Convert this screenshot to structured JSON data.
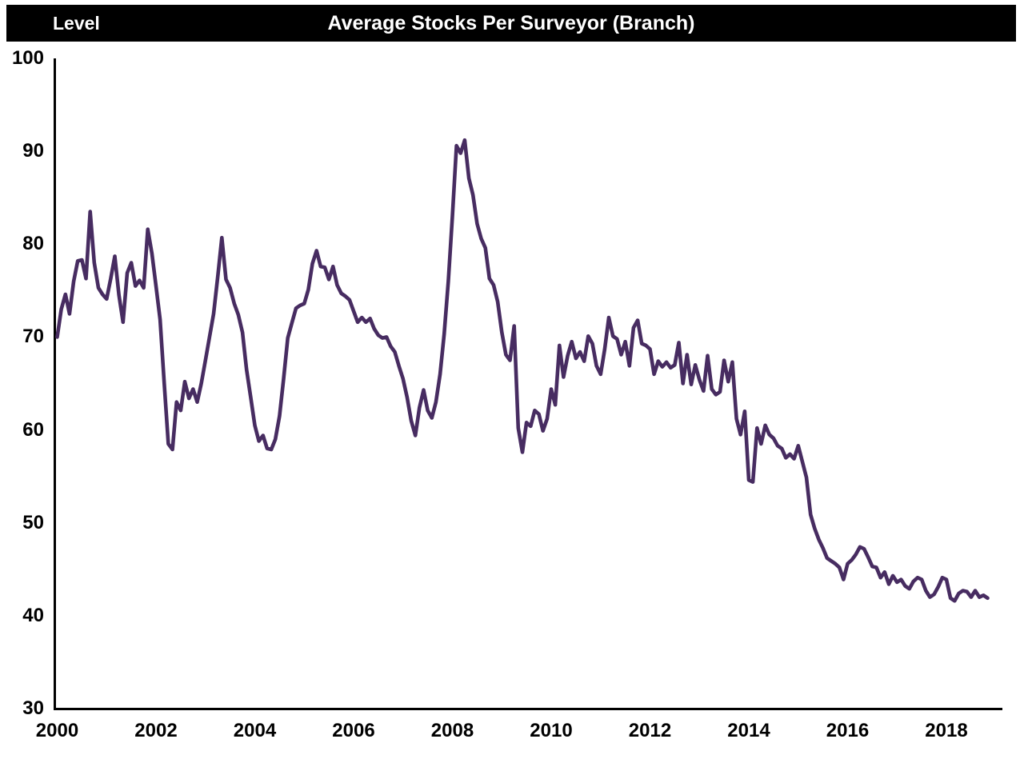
{
  "header": {
    "level_label": "Level",
    "title": "Average Stocks Per Surveyor (Branch)",
    "bar_color": "#000000",
    "text_color": "#ffffff"
  },
  "chart_data": {
    "type": "line",
    "title": "Average Stocks Per Surveyor (Branch)",
    "ylabel": "Level",
    "xlabel": "",
    "grid": false,
    "legend": "none",
    "y_axis": {
      "min": 30,
      "max": 100,
      "tick_interval": 10,
      "ticks": [
        100,
        90,
        80,
        70,
        60,
        50,
        40,
        30
      ]
    },
    "x_axis": {
      "tick_years": [
        2000,
        2002,
        2004,
        2006,
        2008,
        2010,
        2012,
        2014,
        2016,
        2018
      ],
      "range_start": 2000.0,
      "range_end": 2018.92
    },
    "axis_color": "#000000",
    "series": [
      {
        "name": "Average stocks per surveyor (branch)",
        "color": "#472c61",
        "frequency": "monthly",
        "start_year": 2000,
        "start_month": 1,
        "values": [
          70.0,
          73.0,
          74.6,
          72.5,
          76.0,
          78.2,
          78.3,
          76.3,
          83.5,
          78.0,
          75.3,
          74.6,
          74.1,
          76.3,
          78.7,
          74.5,
          71.6,
          76.9,
          78.0,
          75.5,
          76.1,
          75.3,
          81.6,
          79.0,
          75.5,
          71.9,
          65.0,
          58.5,
          57.9,
          63.0,
          62.1,
          65.2,
          63.4,
          64.4,
          63.0,
          65.0,
          67.5,
          70.0,
          72.5,
          76.5,
          80.7,
          76.2,
          75.3,
          73.6,
          72.4,
          70.5,
          66.5,
          63.5,
          60.5,
          58.8,
          59.4,
          58.0,
          57.9,
          59.0,
          61.5,
          65.5,
          69.9,
          71.5,
          73.1,
          73.4,
          73.6,
          75.1,
          77.9,
          79.3,
          77.6,
          77.5,
          76.2,
          77.6,
          75.6,
          74.7,
          74.4,
          74.0,
          72.8,
          71.6,
          72.1,
          71.6,
          72.0,
          70.9,
          70.2,
          69.9,
          70.0,
          69.0,
          68.4,
          66.9,
          65.5,
          63.5,
          61.0,
          59.4,
          62.4,
          64.3,
          62.1,
          61.3,
          63.0,
          66.0,
          70.3,
          76.0,
          83.0,
          90.6,
          89.8,
          91.2,
          87.1,
          85.3,
          82.2,
          80.6,
          79.6,
          76.3,
          75.6,
          73.8,
          70.5,
          68.1,
          67.5,
          71.2,
          60.2,
          57.6,
          60.8,
          60.4,
          62.1,
          61.7,
          59.9,
          61.2,
          64.4,
          62.7,
          69.1,
          65.7,
          68.0,
          69.5,
          67.7,
          68.4,
          67.4,
          70.1,
          69.3,
          66.9,
          66.0,
          68.7,
          72.1,
          70.1,
          69.8,
          68.1,
          69.5,
          66.9,
          71.0,
          71.8,
          69.3,
          69.1,
          68.7,
          66.0,
          67.4,
          66.8,
          67.3,
          66.7,
          67.0,
          69.4,
          65.0,
          68.1,
          64.9,
          67.0,
          65.4,
          64.2,
          68.0,
          64.4,
          63.8,
          64.1,
          67.5,
          65.2,
          67.3,
          61.2,
          59.5,
          62.0,
          54.6,
          54.4,
          60.2,
          58.5,
          60.5,
          59.5,
          59.1,
          58.3,
          58.0,
          57.0,
          57.4,
          56.9,
          58.3,
          56.6,
          54.9,
          50.9,
          49.4,
          48.2,
          47.3,
          46.2,
          45.9,
          45.6,
          45.2,
          43.9,
          45.6,
          46.0,
          46.6,
          47.4,
          47.2,
          46.3,
          45.3,
          45.2,
          44.1,
          44.7,
          43.4,
          44.3,
          43.6,
          43.9,
          43.2,
          42.9,
          43.7,
          44.1,
          43.9,
          42.7,
          42.0,
          42.3,
          43.1,
          44.1,
          43.9,
          41.9,
          41.6,
          42.4,
          42.7,
          42.6,
          42.0,
          42.7,
          42.0,
          42.2,
          41.9
        ]
      }
    ]
  }
}
